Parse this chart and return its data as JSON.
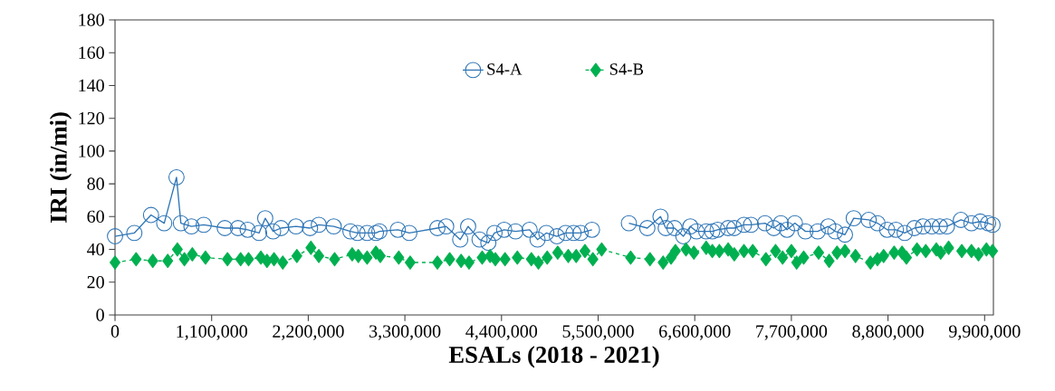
{
  "chart_data": {
    "type": "line",
    "xlabel": "ESALs (2018 - 2021)",
    "ylabel": "IRI (in/mi)",
    "xlim": [
      0,
      10000000
    ],
    "ylim": [
      0,
      180
    ],
    "xticks": [
      {
        "value": 0,
        "label": "0"
      },
      {
        "value": 1100000,
        "label": "1,100,000"
      },
      {
        "value": 2200000,
        "label": "2,200,000"
      },
      {
        "value": 3300000,
        "label": "3,300,000"
      },
      {
        "value": 4400000,
        "label": "4,400,000"
      },
      {
        "value": 5500000,
        "label": "5,500,000"
      },
      {
        "value": 6600000,
        "label": "6,600,000"
      },
      {
        "value": 7700000,
        "label": "7,700,000"
      },
      {
        "value": 8800000,
        "label": "8,800,000"
      },
      {
        "value": 9900000,
        "label": "9,900,000"
      }
    ],
    "yticks": [
      0,
      20,
      40,
      60,
      80,
      100,
      120,
      140,
      160,
      180
    ],
    "grid": false,
    "legend": "top",
    "series": [
      {
        "name": "S4-A",
        "color": "#2e75b6",
        "marker": "circle",
        "line_style": "solid",
        "x": [
          0,
          220000,
          410000,
          560000,
          700000,
          750000,
          870000,
          1010000,
          1250000,
          1400000,
          1510000,
          1640000,
          1710000,
          1800000,
          1890000,
          2060000,
          2220000,
          2320000,
          2490000,
          2680000,
          2760000,
          2870000,
          2970000,
          3010000,
          3220000,
          3350000,
          3670000,
          3770000,
          3930000,
          4020000,
          4150000,
          4250000,
          4320000,
          4430000,
          4560000,
          4720000,
          4810000,
          4910000,
          5030000,
          5130000,
          5220000,
          5300000,
          5430000,
          5640000,
          5850000,
          6060000,
          6210000,
          6270000,
          6370000,
          6470000,
          6550000,
          6620000,
          6730000,
          6800000,
          6860000,
          6980000,
          7050000,
          7160000,
          7240000,
          7400000,
          7500000,
          7580000,
          7650000,
          7740000,
          7860000,
          8000000,
          8120000,
          8200000,
          8310000,
          8410000,
          8580000,
          8680000,
          8790000,
          8890000,
          8990000,
          9100000,
          9200000,
          9300000,
          9390000,
          9470000,
          9630000,
          9750000,
          9850000,
          9940000,
          9990000
        ],
        "values": [
          48,
          50,
          61,
          56,
          84,
          56,
          54,
          55,
          53,
          53,
          52,
          50,
          59,
          51,
          53,
          54,
          53,
          55,
          54,
          51,
          50,
          50,
          50,
          51,
          52,
          50,
          53,
          54,
          46,
          54,
          46,
          44,
          50,
          52,
          51,
          52,
          46,
          50,
          48,
          50,
          50,
          50,
          52,
          null,
          56,
          53,
          60,
          53,
          53,
          48,
          54,
          51,
          51,
          51,
          52,
          53,
          53,
          55,
          55,
          56,
          53,
          56,
          52,
          56,
          51,
          51,
          54,
          51,
          49,
          59,
          58,
          56,
          52,
          52,
          50,
          53,
          54,
          54,
          54,
          54,
          58,
          56,
          57,
          56,
          55
        ]
      },
      {
        "name": "S4-B",
        "color": "#00b050",
        "marker": "diamond",
        "line_style": "dashed",
        "x": [
          0,
          240000,
          430000,
          600000,
          710000,
          790000,
          880000,
          1030000,
          1280000,
          1430000,
          1520000,
          1660000,
          1730000,
          1810000,
          1910000,
          2070000,
          2230000,
          2320000,
          2500000,
          2700000,
          2770000,
          2870000,
          2970000,
          3020000,
          3230000,
          3360000,
          3670000,
          3810000,
          3940000,
          4030000,
          4180000,
          4270000,
          4330000,
          4440000,
          4580000,
          4740000,
          4820000,
          4920000,
          5040000,
          5160000,
          5250000,
          5350000,
          5440000,
          5540000,
          5870000,
          6090000,
          6240000,
          6330000,
          6380000,
          6500000,
          6590000,
          6730000,
          6800000,
          6880000,
          6980000,
          7050000,
          7160000,
          7260000,
          7410000,
          7520000,
          7600000,
          7700000,
          7760000,
          7840000,
          8010000,
          8130000,
          8220000,
          8310000,
          8430000,
          8600000,
          8680000,
          8750000,
          8870000,
          8960000,
          9010000,
          9130000,
          9230000,
          9350000,
          9400000,
          9490000,
          9640000,
          9750000,
          9830000,
          9920000,
          9990000
        ],
        "values": [
          32,
          34,
          33,
          33,
          40,
          34,
          37,
          35,
          34,
          34,
          34,
          35,
          33,
          34,
          32,
          36,
          41,
          36,
          34,
          37,
          36,
          35,
          38,
          36,
          35,
          32,
          32,
          34,
          33,
          32,
          35,
          36,
          34,
          34,
          35,
          34,
          32,
          35,
          38,
          36,
          36,
          39,
          34,
          40,
          35,
          34,
          32,
          35,
          39,
          40,
          38,
          41,
          39,
          39,
          40,
          37,
          39,
          39,
          34,
          39,
          35,
          39,
          32,
          35,
          38,
          33,
          38,
          39,
          36,
          32,
          34,
          36,
          38,
          38,
          35,
          40,
          39,
          40,
          38,
          41,
          39,
          39,
          37,
          40,
          39
        ]
      }
    ]
  }
}
